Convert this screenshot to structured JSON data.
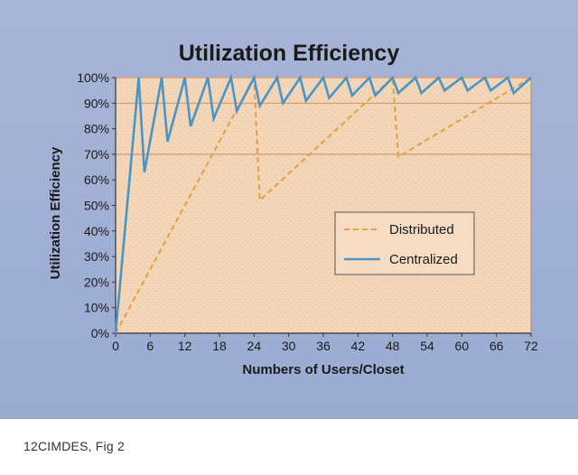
{
  "caption": "12CIMDES, Fig 2",
  "colors": {
    "panel": "#a1afd3",
    "plot_bg": "#f3d5b8",
    "distributed": "#e2a040",
    "centralized": "#4a95c6",
    "reference_line": "#d99a6c",
    "text": "#1a1a1a"
  },
  "chart_data": {
    "type": "line",
    "title": "Utilization Efficiency",
    "xlabel": "Numbers of Users/Closet",
    "ylabel": "Utilization Efficiency",
    "xlim": [
      0,
      72
    ],
    "ylim": [
      0,
      100
    ],
    "x_ticks": [
      "0",
      "6",
      "12",
      "18",
      "24",
      "30",
      "36",
      "42",
      "48",
      "54",
      "60",
      "66",
      "72"
    ],
    "y_ticks": [
      "0%",
      "10%",
      "20%",
      "30%",
      "40%",
      "50%",
      "60%",
      "70%",
      "80%",
      "90%",
      "100%"
    ],
    "reference_lines_y": [
      70,
      90,
      100
    ],
    "legend_position": "center-right",
    "series": [
      {
        "name": "Distributed",
        "style": "dashed",
        "x": [
          0,
          24,
          25,
          48,
          49,
          72
        ],
        "y": [
          0,
          100,
          52,
          100,
          69,
          100
        ]
      },
      {
        "name": "Centralized",
        "style": "solid",
        "x": [
          0,
          4,
          5,
          8,
          9,
          12,
          13,
          16,
          17,
          20,
          21,
          24,
          25,
          28,
          29,
          32,
          33,
          36,
          37,
          40,
          41,
          44,
          45,
          48,
          49,
          52,
          53,
          56,
          57,
          60,
          61,
          64,
          65,
          68,
          69,
          72
        ],
        "y": [
          0,
          100,
          63,
          100,
          75,
          100,
          81,
          100,
          84,
          100,
          87,
          100,
          89,
          100,
          90,
          100,
          91,
          100,
          92,
          100,
          93,
          100,
          93,
          100,
          94,
          100,
          94,
          100,
          95,
          100,
          95,
          100,
          95,
          100,
          94,
          100
        ]
      }
    ]
  }
}
